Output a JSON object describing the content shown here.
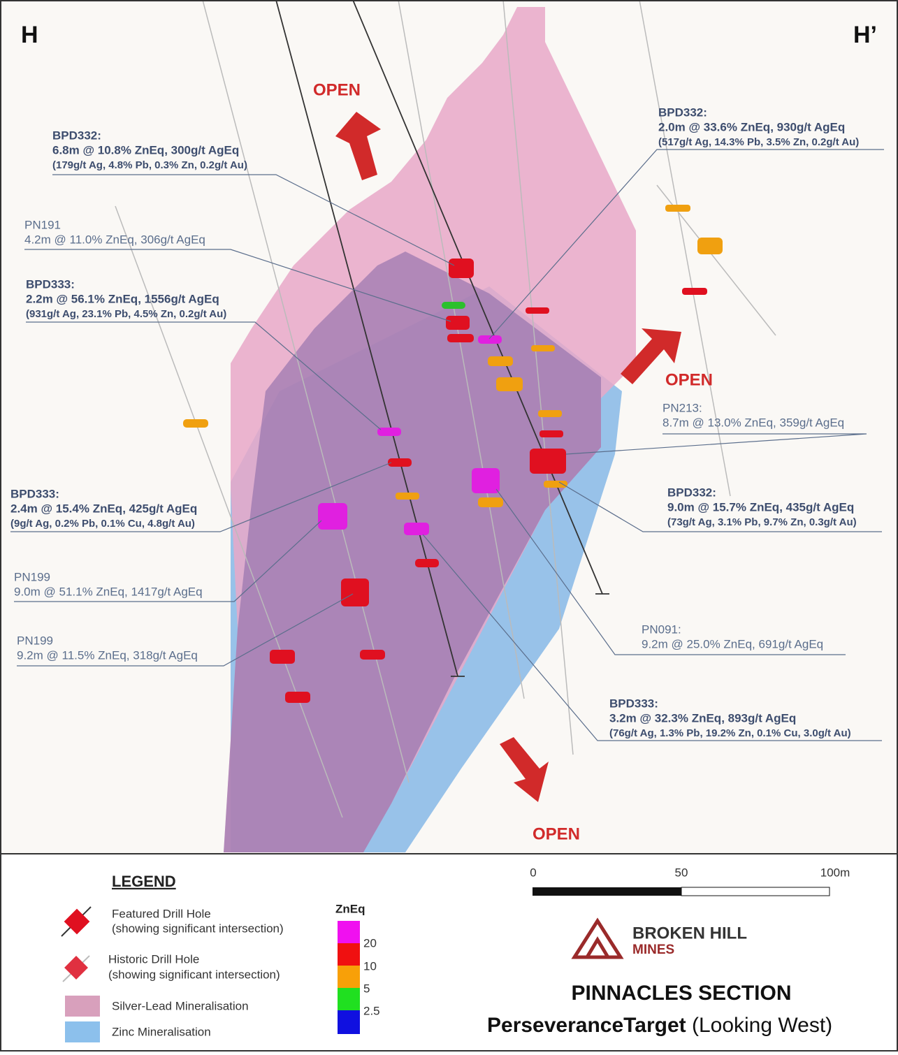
{
  "section": {
    "left": "H",
    "right": "H’"
  },
  "open_labels": [
    "OPEN",
    "OPEN",
    "OPEN"
  ],
  "callouts": [
    {
      "lines": [
        "BPD332:",
        "6.8m @ 10.8% ZnEq, 300g/t AgEq",
        "(179g/t Ag, 4.8% Pb, 0.3% Zn, 0.2g/t Au)"
      ]
    },
    {
      "lines": [
        "PN191",
        "4.2m @ 11.0% ZnEq, 306g/t AgEq"
      ]
    },
    {
      "lines": [
        "BPD333:",
        "2.2m @ 56.1% ZnEq, 1556g/t AgEq",
        "(931g/t Ag, 23.1% Pb, 4.5% Zn, 0.2g/t Au)"
      ]
    },
    {
      "lines": [
        "BPD333:",
        "2.4m @ 15.4% ZnEq, 425g/t AgEq",
        "(9g/t Ag, 0.2% Pb, 0.1% Cu, 4.8g/t Au)"
      ]
    },
    {
      "lines": [
        "PN199",
        "9.0m @ 51.1% ZnEq, 1417g/t AgEq"
      ]
    },
    {
      "lines": [
        "PN199",
        "9.2m @ 11.5% ZnEq, 318g/t AgEq"
      ]
    },
    {
      "lines": [
        "BPD332:",
        "2.0m @ 33.6% ZnEq, 930g/t AgEq",
        "(517g/t Ag, 14.3% Pb, 3.5% Zn, 0.2g/t Au)"
      ]
    },
    {
      "lines": [
        "PN213:",
        "8.7m @ 13.0% ZnEq, 359g/t AgEq"
      ]
    },
    {
      "lines": [
        "BPD332:",
        "9.0m @ 15.7% ZnEq, 435g/t AgEq",
        "(73g/t Ag, 3.1% Pb, 9.7% Zn, 0.3g/t Au)"
      ]
    },
    {
      "lines": [
        "PN091:",
        "9.2m @ 25.0% ZnEq, 691g/t AgEq"
      ]
    },
    {
      "lines": [
        "BPD333:",
        "3.2m @ 32.3% ZnEq, 893g/t AgEq",
        "(76g/t Ag, 1.3% Pb, 19.2% Zn, 0.1% Cu, 3.0g/t Au)"
      ]
    }
  ],
  "legend": {
    "title": "LEGEND",
    "items": [
      [
        "Featured Drill Hole",
        "(showing significant intersection)"
      ],
      [
        "Historic Drill Hole",
        "(showing significant intersection)"
      ],
      [
        "Silver-Lead Mineralisation"
      ],
      [
        "Zinc Mineralisation"
      ]
    ],
    "scale_title": "ZnEq",
    "scale": [
      "20",
      "10",
      "5",
      "2.5"
    ]
  },
  "scale_bar": [
    "0",
    "50",
    "100m"
  ],
  "logo": {
    "line1": "BROKEN HILL",
    "line2": "MINES"
  },
  "title": "PINNACLES SECTION",
  "subtitle": {
    "bold": "PerseveranceTarget",
    "normal": "(Looking West)"
  }
}
